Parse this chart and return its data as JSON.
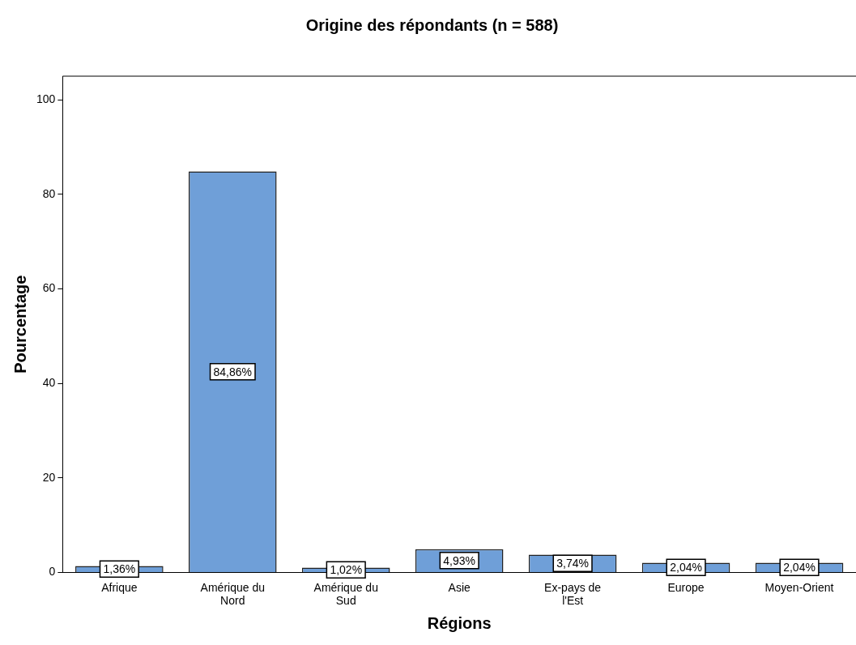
{
  "chart_data": {
    "type": "bar",
    "title": "Origine des répondants (n = 588)",
    "xlabel": "Régions",
    "ylabel": "Pourcentage",
    "categories": [
      "Afrique",
      "Amérique du Nord",
      "Amérique du Sud",
      "Asie",
      "Ex-pays de l'Est",
      "Europe",
      "Moyen-Orient"
    ],
    "values": [
      1.36,
      84.86,
      1.02,
      4.93,
      3.74,
      2.04,
      2.04
    ],
    "value_labels": [
      "1,36%",
      "84,86%",
      "1,02%",
      "4,93%",
      "3,74%",
      "2,04%",
      "2,04%"
    ],
    "color": "#6f9fd8",
    "ylim": [
      0,
      105
    ],
    "yticks": [
      0,
      20,
      40,
      60,
      80,
      100
    ],
    "grid": false,
    "legend": false
  }
}
